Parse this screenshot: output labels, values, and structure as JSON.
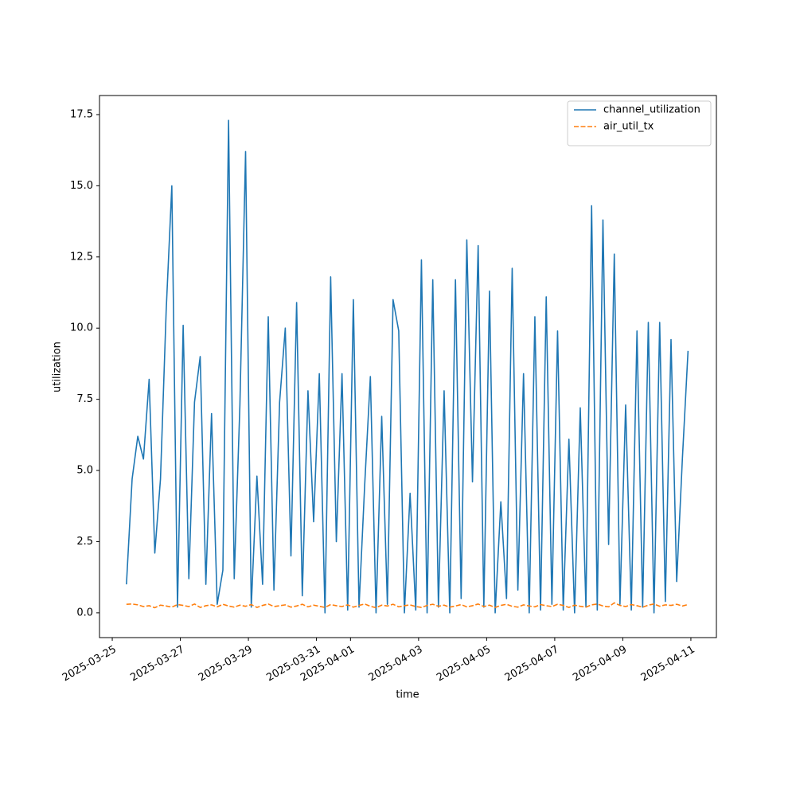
{
  "chart_data": {
    "type": "line",
    "xlabel": "time",
    "ylabel": "utilization",
    "x": [
      "2025-03-25 10:00",
      "2025-03-25 14:00",
      "2025-03-25 18:00",
      "2025-03-25 22:00",
      "2025-03-26 02:00",
      "2025-03-26 06:00",
      "2025-03-26 10:00",
      "2025-03-26 14:00",
      "2025-03-26 18:00",
      "2025-03-26 22:00",
      "2025-03-27 02:00",
      "2025-03-27 06:00",
      "2025-03-27 10:00",
      "2025-03-27 14:00",
      "2025-03-27 18:00",
      "2025-03-27 22:00",
      "2025-03-28 02:00",
      "2025-03-28 06:00",
      "2025-03-28 10:00",
      "2025-03-28 14:00",
      "2025-03-28 18:00",
      "2025-03-28 22:00",
      "2025-03-29 02:00",
      "2025-03-29 06:00",
      "2025-03-29 10:00",
      "2025-03-29 14:00",
      "2025-03-29 18:00",
      "2025-03-29 22:00",
      "2025-03-30 02:00",
      "2025-03-30 06:00",
      "2025-03-30 10:00",
      "2025-03-30 14:00",
      "2025-03-30 18:00",
      "2025-03-30 22:00",
      "2025-03-31 02:00",
      "2025-03-31 06:00",
      "2025-03-31 10:00",
      "2025-03-31 14:00",
      "2025-03-31 18:00",
      "2025-03-31 22:00",
      "2025-04-01 02:00",
      "2025-04-01 06:00",
      "2025-04-01 10:00",
      "2025-04-01 14:00",
      "2025-04-01 18:00",
      "2025-04-01 22:00",
      "2025-04-02 02:00",
      "2025-04-02 06:00",
      "2025-04-02 10:00",
      "2025-04-02 14:00",
      "2025-04-02 18:00",
      "2025-04-02 22:00",
      "2025-04-03 02:00",
      "2025-04-03 06:00",
      "2025-04-03 10:00",
      "2025-04-03 14:00",
      "2025-04-03 18:00",
      "2025-04-03 22:00",
      "2025-04-04 02:00",
      "2025-04-04 06:00",
      "2025-04-04 10:00",
      "2025-04-04 14:00",
      "2025-04-04 18:00",
      "2025-04-04 22:00",
      "2025-04-05 02:00",
      "2025-04-05 06:00",
      "2025-04-05 10:00",
      "2025-04-05 14:00",
      "2025-04-05 18:00",
      "2025-04-05 22:00",
      "2025-04-06 02:00",
      "2025-04-06 06:00",
      "2025-04-06 10:00",
      "2025-04-06 14:00",
      "2025-04-06 18:00",
      "2025-04-06 22:00",
      "2025-04-07 02:00",
      "2025-04-07 06:00",
      "2025-04-07 10:00",
      "2025-04-07 14:00",
      "2025-04-07 18:00",
      "2025-04-07 22:00",
      "2025-04-08 02:00",
      "2025-04-08 06:00",
      "2025-04-08 10:00",
      "2025-04-08 14:00",
      "2025-04-08 18:00",
      "2025-04-08 22:00",
      "2025-04-09 02:00",
      "2025-04-09 06:00",
      "2025-04-09 10:00",
      "2025-04-09 14:00",
      "2025-04-09 18:00",
      "2025-04-09 22:00",
      "2025-04-10 02:00",
      "2025-04-10 06:00",
      "2025-04-10 10:00",
      "2025-04-10 14:00",
      "2025-04-10 18:00",
      "2025-04-10 22:00"
    ],
    "series": [
      {
        "name": "channel_utilization",
        "color": "#1f77b4",
        "linestyle": "solid",
        "values": [
          1.0,
          4.7,
          6.2,
          5.4,
          8.2,
          2.1,
          4.7,
          10.6,
          15.0,
          0.2,
          10.1,
          1.2,
          7.4,
          9.0,
          1.0,
          7.0,
          0.3,
          1.5,
          17.3,
          1.2,
          7.3,
          16.2,
          0.2,
          4.8,
          1.0,
          10.4,
          0.8,
          7.4,
          10.0,
          2.0,
          10.9,
          0.6,
          7.8,
          3.2,
          8.4,
          0.0,
          11.8,
          2.5,
          8.4,
          0.1,
          11.0,
          0.2,
          4.5,
          8.3,
          0.0,
          6.9,
          0.3,
          11.0,
          9.9,
          0.0,
          4.2,
          0.1,
          12.4,
          0.0,
          11.7,
          0.2,
          7.8,
          0.0,
          11.7,
          0.5,
          13.1,
          4.6,
          12.9,
          0.2,
          11.3,
          0.0,
          3.9,
          0.5,
          12.1,
          0.8,
          8.4,
          0.0,
          10.4,
          0.1,
          11.1,
          0.3,
          9.9,
          0.1,
          6.1,
          0.0,
          7.2,
          0.2,
          14.3,
          0.1,
          13.8,
          2.4,
          12.6,
          0.3,
          7.3,
          0.1,
          9.9,
          0.2,
          10.2,
          0.0,
          10.2,
          0.4,
          9.6,
          1.1,
          5.4,
          9.2
        ]
      },
      {
        "name": "air_util_tx",
        "color": "#ff7f0e",
        "linestyle": "dashed",
        "values": [
          0.3,
          0.31,
          0.28,
          0.22,
          0.25,
          0.18,
          0.27,
          0.24,
          0.2,
          0.29,
          0.26,
          0.22,
          0.31,
          0.19,
          0.25,
          0.28,
          0.21,
          0.3,
          0.24,
          0.2,
          0.27,
          0.23,
          0.29,
          0.19,
          0.26,
          0.31,
          0.22,
          0.25,
          0.28,
          0.2,
          0.24,
          0.3,
          0.21,
          0.27,
          0.23,
          0.19,
          0.29,
          0.25,
          0.22,
          0.28,
          0.2,
          0.26,
          0.31,
          0.23,
          0.18,
          0.27,
          0.24,
          0.3,
          0.21,
          0.25,
          0.28,
          0.22,
          0.19,
          0.26,
          0.3,
          0.23,
          0.27,
          0.2,
          0.24,
          0.29,
          0.21,
          0.25,
          0.31,
          0.22,
          0.27,
          0.19,
          0.26,
          0.3,
          0.23,
          0.2,
          0.28,
          0.24,
          0.21,
          0.29,
          0.25,
          0.22,
          0.3,
          0.26,
          0.19,
          0.27,
          0.23,
          0.2,
          0.28,
          0.31,
          0.24,
          0.21,
          0.35,
          0.26,
          0.22,
          0.29,
          0.25,
          0.2,
          0.27,
          0.31,
          0.23,
          0.28,
          0.26,
          0.3,
          0.24,
          0.29
        ]
      }
    ],
    "xlim": [
      "2025-03-24 15:00",
      "2025-04-11 18:00"
    ],
    "xticks": [
      "2025-03-25",
      "2025-03-27",
      "2025-03-29",
      "2025-03-31",
      "2025-04-01",
      "2025-04-03",
      "2025-04-05",
      "2025-04-07",
      "2025-04-09",
      "2025-04-11"
    ],
    "ylim": [
      -0.87,
      18.17
    ],
    "yticks": [
      {
        "value": 0,
        "label": "0.0"
      },
      {
        "value": 2.5,
        "label": "2.5"
      },
      {
        "value": 5,
        "label": "5.0"
      },
      {
        "value": 7.5,
        "label": "7.5"
      },
      {
        "value": 10,
        "label": "10.0"
      },
      {
        "value": 12.5,
        "label": "12.5"
      },
      {
        "value": 15,
        "label": "15.0"
      },
      {
        "value": 17.5,
        "label": "17.5"
      }
    ],
    "grid": false,
    "legend": "upper right"
  }
}
